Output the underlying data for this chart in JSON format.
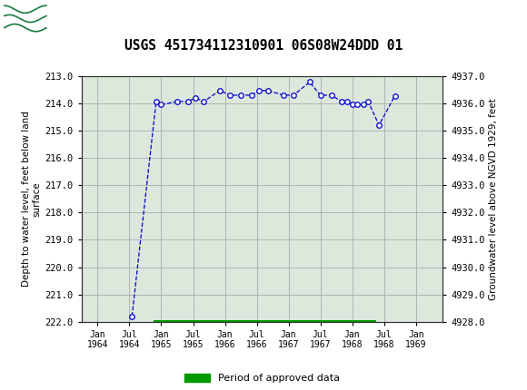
{
  "title": "USGS 451734112310901 06S08W24DDD 01",
  "ylabel_left": "Depth to water level, feet below land\nsurface",
  "ylabel_right": "Groundwater level above NGVD 1929, feet",
  "header_color": "#1a7a40",
  "ylim_left": [
    222.0,
    213.0
  ],
  "ylim_right": [
    4928.0,
    4937.0
  ],
  "yticks_left": [
    213.0,
    214.0,
    215.0,
    216.0,
    217.0,
    218.0,
    219.0,
    220.0,
    221.0,
    222.0
  ],
  "yticks_right": [
    4928.0,
    4929.0,
    4930.0,
    4931.0,
    4932.0,
    4933.0,
    4934.0,
    4935.0,
    4936.0,
    4937.0
  ],
  "data_x_numeric": [
    1964.54,
    1964.92,
    1965.0,
    1965.25,
    1965.42,
    1965.54,
    1965.67,
    1965.92,
    1966.08,
    1966.25,
    1966.42,
    1966.54,
    1966.67,
    1966.92,
    1967.08,
    1967.33,
    1967.5,
    1967.67,
    1967.83,
    1967.92,
    1968.0,
    1968.08,
    1968.17,
    1968.25,
    1968.42,
    1968.67
  ],
  "data_y": [
    221.8,
    213.93,
    214.05,
    213.93,
    213.93,
    213.8,
    213.93,
    213.53,
    213.7,
    213.7,
    213.7,
    213.53,
    213.53,
    213.7,
    213.7,
    213.22,
    213.7,
    213.7,
    213.93,
    213.93,
    214.05,
    214.05,
    214.05,
    213.93,
    214.8,
    213.72
  ],
  "line_color": "#0000cc",
  "marker_color": "#0000cc",
  "marker_style": "o",
  "marker_size": 4,
  "line_style": "--",
  "line_width": 0.9,
  "grid_color": "#aaaaaa",
  "bg_color": "#ffffff",
  "plot_bg_color": "#dde8dd",
  "approved_bar_color": "#009900",
  "approved_bar_y": 222.0,
  "approved_bar_height": 0.12,
  "approved_x_start": 1964.88,
  "approved_x_end": 1968.38,
  "legend_label": "Period of approved data",
  "x_tick_positions": [
    1964.0,
    1964.5,
    1965.0,
    1965.5,
    1966.0,
    1966.5,
    1967.0,
    1967.5,
    1968.0,
    1968.5,
    1969.0
  ],
  "x_tick_labels": [
    "Jan\n1964",
    "Jul\n1964",
    "Jan\n1965",
    "Jul\n1965",
    "Jan\n1966",
    "Jul\n1966",
    "Jan\n1967",
    "Jul\n1967",
    "Jan\n1968",
    "Jul\n1968",
    "Jan\n1969"
  ],
  "xlim": [
    1963.75,
    1969.42
  ]
}
